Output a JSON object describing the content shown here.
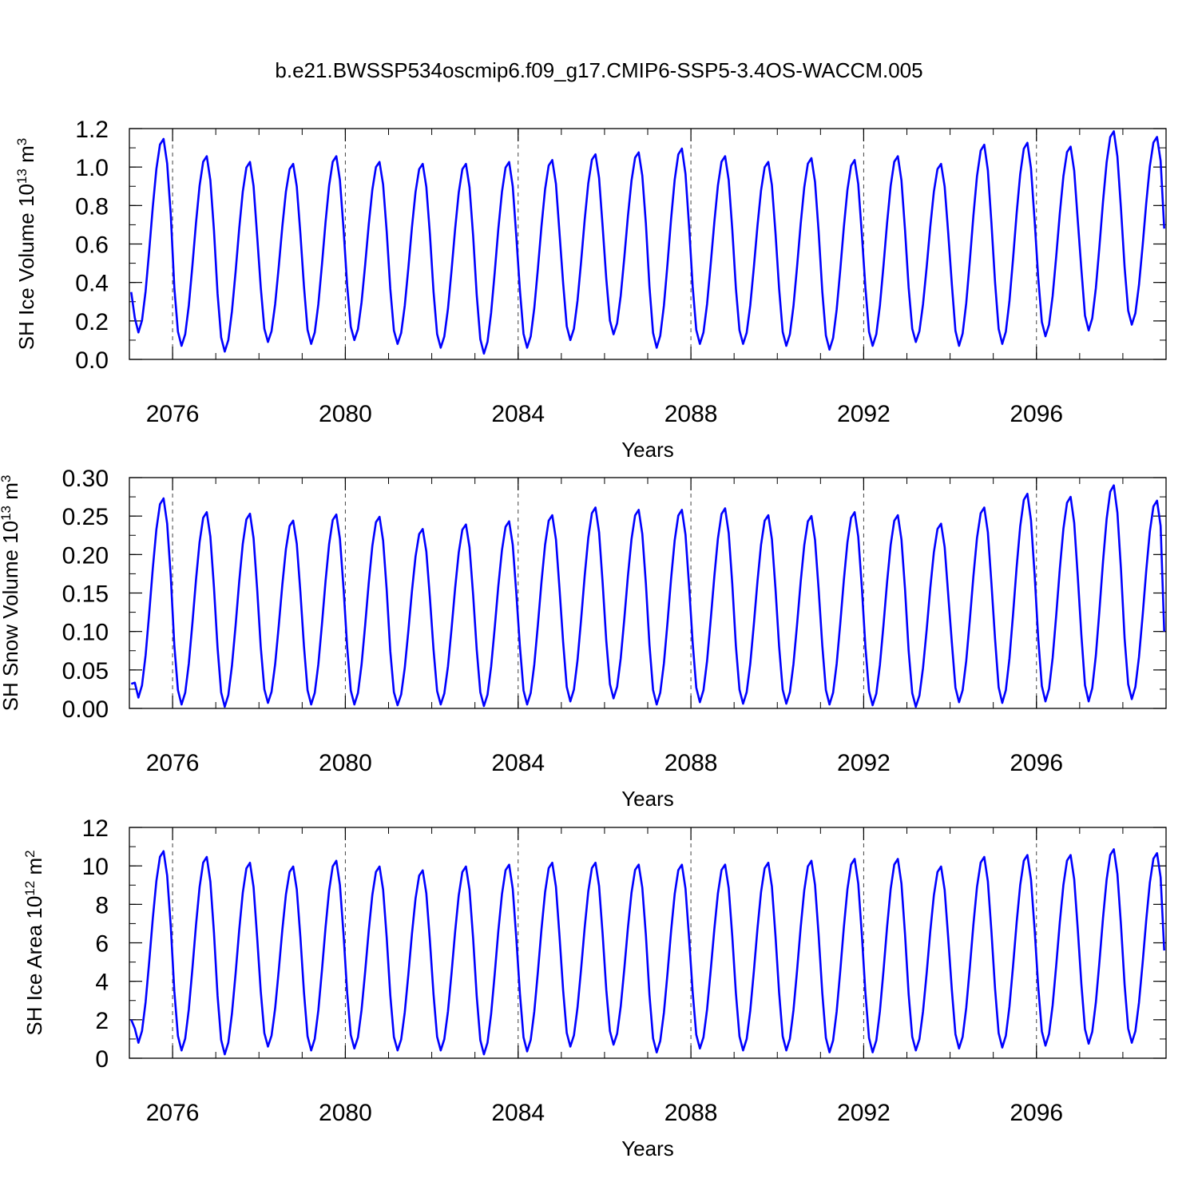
{
  "title": "b.e21.BWSSP534oscmip6.f09_g17.CMIP6-SSP5-3.4OS-WACCM.005",
  "colors": {
    "line": "#0000ff",
    "axes": "#000000",
    "reference": "#444444"
  },
  "chart_data": [
    {
      "type": "line",
      "name": "ice-volume",
      "ylabel": {
        "main": "SH Ice Volume 10",
        "exp": "13",
        "unit": " m",
        "unit_exp": "3"
      },
      "xlabel": "Years",
      "xlim": [
        2075.0,
        2099.0
      ],
      "ylim": [
        0.0,
        1.2
      ],
      "x_ticks": [
        2076,
        2080,
        2084,
        2088,
        2092,
        2096
      ],
      "y_ticks": [
        "0.0",
        "0.2",
        "0.4",
        "0.6",
        "0.8",
        "1.0",
        "1.2"
      ],
      "y_minor_step": 0.1,
      "reference_years": [
        2076,
        2080,
        2084,
        2088,
        2092,
        2096
      ],
      "x_start": 2075.0417,
      "x_step": 0.08333,
      "seasonal_min": [
        0.14,
        0.07,
        0.04,
        0.09,
        0.08,
        0.1,
        0.08,
        0.06,
        0.03,
        0.06,
        0.1,
        0.13,
        0.06,
        0.08,
        0.08,
        0.07,
        0.05,
        0.07,
        0.09,
        0.07,
        0.08,
        0.12,
        0.15,
        0.18
      ],
      "seasonal_max": [
        1.15,
        1.06,
        1.03,
        1.02,
        1.06,
        1.03,
        1.02,
        1.02,
        1.03,
        1.04,
        1.07,
        1.08,
        1.1,
        1.06,
        1.03,
        1.05,
        1.04,
        1.06,
        1.02,
        1.12,
        1.13,
        1.11,
        1.19,
        1.16
      ],
      "start_value": 0.35,
      "end_value": 0.68
    },
    {
      "type": "line",
      "name": "snow-volume",
      "ylabel": {
        "main": "SH Snow Volume 10",
        "exp": "13",
        "unit": " m",
        "unit_exp": "3"
      },
      "xlabel": "Years",
      "xlim": [
        2075.0,
        2099.0
      ],
      "ylim": [
        0.0,
        0.3
      ],
      "x_ticks": [
        2076,
        2080,
        2084,
        2088,
        2092,
        2096
      ],
      "y_ticks": [
        "0.00",
        "0.05",
        "0.10",
        "0.15",
        "0.20",
        "0.25",
        "0.30"
      ],
      "y_minor_step": 0.025,
      "reference_years": [
        2076,
        2080,
        2084,
        2088,
        2092,
        2096
      ],
      "x_start": 2075.0417,
      "x_step": 0.08333,
      "seasonal_min": [
        0.014,
        0.005,
        0.002,
        0.007,
        0.005,
        0.005,
        0.004,
        0.005,
        0.003,
        0.005,
        0.009,
        0.013,
        0.005,
        0.008,
        0.006,
        0.006,
        0.005,
        0.004,
        0.002,
        0.008,
        0.007,
        0.009,
        0.009,
        0.012
      ],
      "seasonal_max": [
        0.274,
        0.256,
        0.254,
        0.245,
        0.253,
        0.25,
        0.234,
        0.24,
        0.244,
        0.252,
        0.262,
        0.259,
        0.259,
        0.261,
        0.252,
        0.251,
        0.256,
        0.252,
        0.241,
        0.262,
        0.28,
        0.276,
        0.291,
        0.271
      ],
      "start_value": 0.032,
      "end_value": 0.1
    },
    {
      "type": "line",
      "name": "ice-area",
      "ylabel": {
        "main": "SH Ice Area 10",
        "exp": "12",
        "unit": " m",
        "unit_exp": "2"
      },
      "xlabel": "Years",
      "xlim": [
        2075.0,
        2099.0
      ],
      "ylim": [
        0,
        12
      ],
      "x_ticks": [
        2076,
        2080,
        2084,
        2088,
        2092,
        2096
      ],
      "y_ticks": [
        "0",
        "2",
        "4",
        "6",
        "8",
        "10",
        "12"
      ],
      "y_minor_step": 1,
      "reference_years": [
        2076,
        2080,
        2084,
        2088,
        2092,
        2096
      ],
      "x_start": 2075.0417,
      "x_step": 0.08333,
      "seasonal_min": [
        0.8,
        0.4,
        0.2,
        0.6,
        0.4,
        0.5,
        0.4,
        0.4,
        0.2,
        0.35,
        0.6,
        0.7,
        0.3,
        0.5,
        0.4,
        0.4,
        0.3,
        0.3,
        0.4,
        0.5,
        0.55,
        0.65,
        0.75,
        0.8
      ],
      "seasonal_max": [
        10.8,
        10.5,
        10.2,
        10.0,
        10.3,
        10.0,
        9.8,
        10.0,
        10.1,
        10.2,
        10.2,
        10.1,
        10.1,
        10.1,
        10.2,
        10.3,
        10.4,
        10.4,
        10.0,
        10.5,
        10.6,
        10.6,
        10.9,
        10.7
      ],
      "start_value": 2.0,
      "end_value": 5.6
    }
  ]
}
